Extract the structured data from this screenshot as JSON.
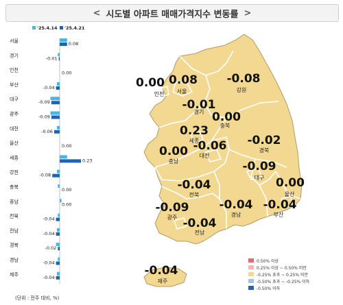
{
  "title": "시도별 아파트 매매가격지수 변동률",
  "unit_note": "(단위 : 전주 대비, %)",
  "colors": {
    "series1": "#46b5e8",
    "series2": "#1f63b4",
    "map_fill": "#f2d891",
    "map_stroke": "#b09a66"
  },
  "chart_data": {
    "type": "bar",
    "orientation": "horizontal",
    "categories": [
      "서울",
      "경기",
      "인천",
      "부산",
      "대구",
      "광주",
      "대전",
      "울산",
      "세종",
      "강원",
      "충북",
      "충남",
      "전북",
      "전남",
      "경북",
      "경남",
      "제주"
    ],
    "series": [
      {
        "name": "'25.4.14",
        "values": [
          0.08,
          -0.02,
          0.0,
          -0.03,
          -0.1,
          -0.1,
          -0.03,
          0.0,
          0.08,
          -0.03,
          -0.02,
          0.02,
          -0.02,
          -0.03,
          -0.04,
          -0.02,
          -0.03
        ]
      },
      {
        "name": "'25.4.21",
        "values": [
          0.08,
          -0.01,
          0.0,
          -0.04,
          -0.09,
          -0.09,
          -0.06,
          0.0,
          0.23,
          -0.08,
          0.0,
          0.0,
          -0.04,
          -0.04,
          -0.02,
          -0.04,
          -0.04
        ]
      }
    ],
    "value_labels": [
      "0.08",
      "-0.01",
      "0.00",
      "-0.04",
      "-0.09",
      "-0.09",
      "-0.06",
      "0.00",
      "0.23",
      "-0.08",
      "0.00",
      "0.00",
      "-0.04",
      "-0.04",
      "-0.02",
      "-0.04",
      "-0.04"
    ],
    "xlim": [
      -0.12,
      0.25
    ]
  },
  "map": {
    "regions": [
      {
        "name": "인천",
        "value": "0.00"
      },
      {
        "name": "서울",
        "value": "0.08"
      },
      {
        "name": "강원",
        "value": "-0.08"
      },
      {
        "name": "경기",
        "value": "-0.01"
      },
      {
        "name": "충북",
        "value": "0.00"
      },
      {
        "name": "세종",
        "value": "0.23"
      },
      {
        "name": "경북",
        "value": "-0.02"
      },
      {
        "name": "충남",
        "value": "0.00"
      },
      {
        "name": "대전",
        "value": "-0.06"
      },
      {
        "name": "대구",
        "value": "-0.09"
      },
      {
        "name": "전북",
        "value": "-0.04"
      },
      {
        "name": "울산",
        "value": "0.00"
      },
      {
        "name": "광주",
        "value": "-0.09"
      },
      {
        "name": "경남",
        "value": "-0.04"
      },
      {
        "name": "부산",
        "value": "-0.04"
      },
      {
        "name": "전남",
        "value": "-0.04"
      },
      {
        "name": "제주",
        "value": "-0.04"
      }
    ]
  },
  "legend": [
    {
      "label": "0.50% 이상",
      "color": "#e8666e"
    },
    {
      "label": "0.25% 이상 ~ 0.50% 미만",
      "color": "#f5b6b3"
    },
    {
      "label": "-0.25% 초과 ~ 0.25% 미만",
      "color": "#f2d891"
    },
    {
      "label": "-0.50% 초과 ~ -0.25% 이하",
      "color": "#9fc3ea"
    },
    {
      "label": "-0.50% 이하",
      "color": "#2f5fb2"
    }
  ]
}
